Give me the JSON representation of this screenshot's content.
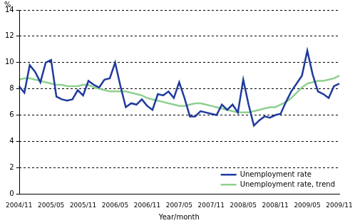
{
  "chart_data": {
    "type": "line",
    "y_label": "%",
    "x_label": "Year/month",
    "categories": [
      "2004/11",
      null,
      null,
      null,
      null,
      null,
      "2005/05",
      null,
      null,
      null,
      null,
      null,
      "2005/11",
      null,
      null,
      null,
      null,
      null,
      "2006/05",
      null,
      null,
      null,
      null,
      null,
      "2006/11",
      null,
      null,
      null,
      null,
      null,
      "2007/05",
      null,
      null,
      null,
      null,
      null,
      "2007/11",
      null,
      null,
      null,
      null,
      null,
      "2008/05",
      null,
      null,
      null,
      null,
      null,
      "2008/11",
      null,
      null,
      null,
      null,
      null,
      "2009/05",
      null,
      null,
      null,
      null,
      null,
      "2009/11"
    ],
    "series": [
      {
        "name": "Unemployment rate",
        "color": "#1f3a9e",
        "values": [
          8.2,
          7.7,
          9.8,
          9.3,
          8.5,
          10.0,
          10.2,
          7.4,
          7.2,
          7.1,
          7.2,
          7.9,
          7.5,
          8.6,
          8.3,
          8.1,
          8.7,
          8.8,
          10.0,
          8.2,
          6.6,
          6.9,
          6.8,
          7.2,
          6.7,
          6.4,
          7.6,
          7.5,
          7.8,
          7.3,
          8.5,
          7.3,
          5.9,
          5.9,
          6.3,
          6.2,
          6.1,
          6.0,
          6.8,
          6.4,
          6.8,
          6.2,
          8.7,
          6.8,
          5.2,
          5.6,
          5.9,
          5.8,
          6.0,
          6.1,
          7.0,
          7.8,
          8.4,
          9.0,
          10.9,
          9.1,
          7.8,
          7.6,
          7.3,
          8.2,
          8.4
        ]
      },
      {
        "name": "Unemployment rate, trend",
        "color": "#8fd08f",
        "values": [
          8.7,
          8.8,
          8.8,
          8.7,
          8.6,
          8.5,
          8.4,
          8.3,
          8.3,
          8.2,
          8.2,
          8.2,
          8.3,
          8.3,
          8.1,
          8.0,
          7.9,
          7.8,
          7.8,
          7.8,
          7.8,
          7.7,
          7.6,
          7.5,
          7.3,
          7.2,
          7.1,
          7.0,
          6.9,
          6.8,
          6.7,
          6.7,
          6.8,
          6.9,
          6.9,
          6.8,
          6.7,
          6.6,
          6.5,
          6.4,
          6.3,
          6.2,
          6.2,
          6.2,
          6.3,
          6.4,
          6.5,
          6.6,
          6.6,
          6.8,
          7.0,
          7.3,
          7.7,
          8.1,
          8.4,
          8.5,
          8.6,
          8.6,
          8.7,
          8.8,
          9.0
        ]
      }
    ],
    "ylim": [
      0,
      14
    ],
    "yticks": [
      0,
      2,
      4,
      6,
      8,
      10,
      12,
      14
    ],
    "grid": true,
    "legend": "lower right"
  }
}
